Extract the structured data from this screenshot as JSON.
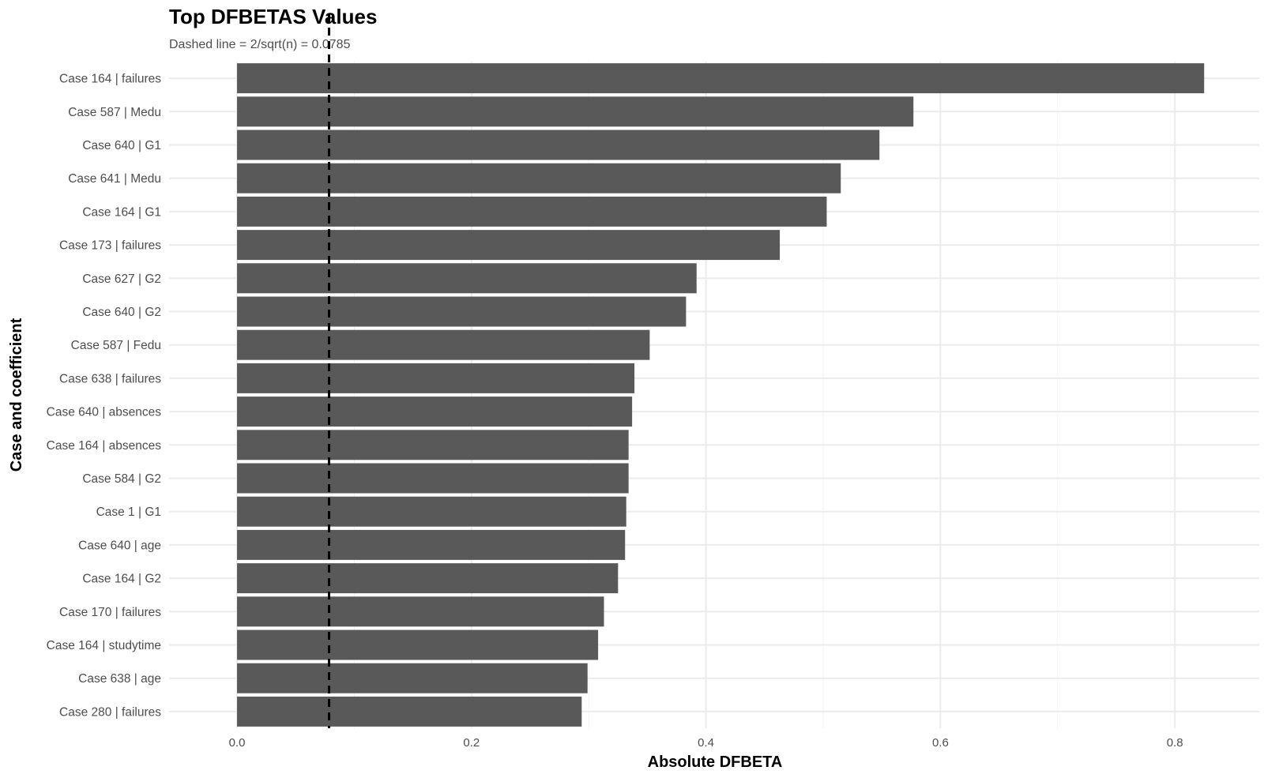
{
  "chart_data": {
    "type": "bar",
    "orientation": "horizontal",
    "title": "Top DFBETAS Values",
    "subtitle": "Dashed line = 2/sqrt(n) = 0.0785",
    "xlabel": "Absolute DFBETA",
    "ylabel": "Case and coefficient",
    "xlim": [
      -0.058,
      0.872
    ],
    "xticks": [
      0.0,
      0.2,
      0.4,
      0.6,
      0.8
    ],
    "xtick_labels": [
      "0.0",
      "0.2",
      "0.4",
      "0.6",
      "0.8"
    ],
    "reference_line": {
      "value": 0.0785,
      "style": "dashed"
    },
    "grid": true,
    "bar_color": "#595959",
    "categories": [
      "Case 164 | failures",
      "Case 587 | Medu",
      "Case 640 | G1",
      "Case 641 | Medu",
      "Case 164 | G1",
      "Case 173 | failures",
      "Case 627 | G2",
      "Case 640 | G2",
      "Case 587 | Fedu",
      "Case 638 | failures",
      "Case 640 | absences",
      "Case 164 | absences",
      "Case 584 | G2",
      "Case 1 | G1",
      "Case 640 | age",
      "Case 164 | G2",
      "Case 170 | failures",
      "Case 164 | studytime",
      "Case 638 | age",
      "Case 280 | failures"
    ],
    "values": [
      0.825,
      0.577,
      0.548,
      0.515,
      0.503,
      0.463,
      0.392,
      0.383,
      0.352,
      0.339,
      0.337,
      0.334,
      0.334,
      0.332,
      0.331,
      0.325,
      0.313,
      0.308,
      0.299,
      0.294
    ]
  }
}
